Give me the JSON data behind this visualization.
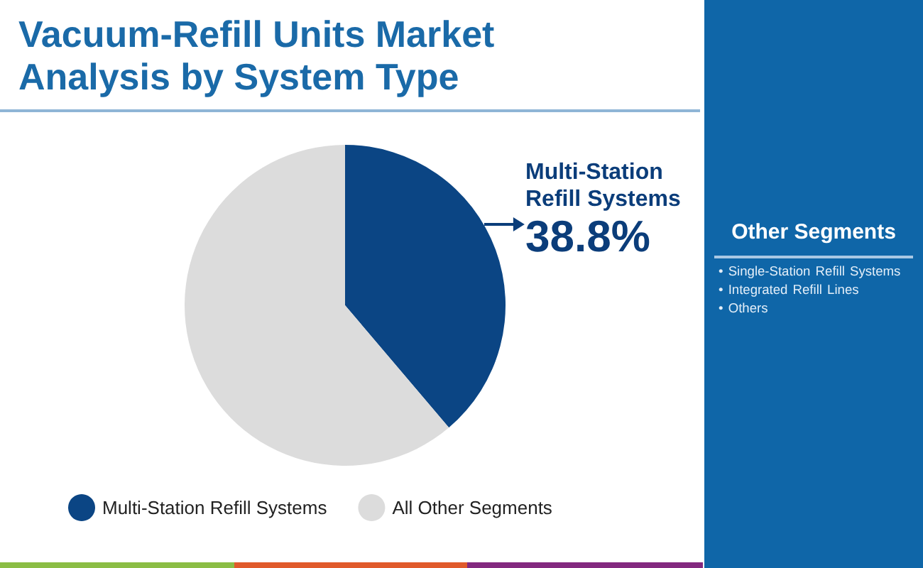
{
  "chart_data": [
    {
      "type": "pie",
      "title": "Vacuum-Refill Units Market Analysis by System Type",
      "categories": [
        "Multi-Station Refill Systems",
        "All Other Segments"
      ],
      "values": [
        38.8,
        61.2
      ],
      "colors": [
        "#0b4584",
        "#dcdcdc"
      ],
      "value_labels": [
        "38.8%",
        null
      ],
      "legend": "bottom"
    },
    {
      "type": "other",
      "title": "Other Segments",
      "annotations": [
        "• Single-Station Refill Systems",
        "• Integrated Refill Lines",
        "• Others"
      ]
    }
  ]
}
